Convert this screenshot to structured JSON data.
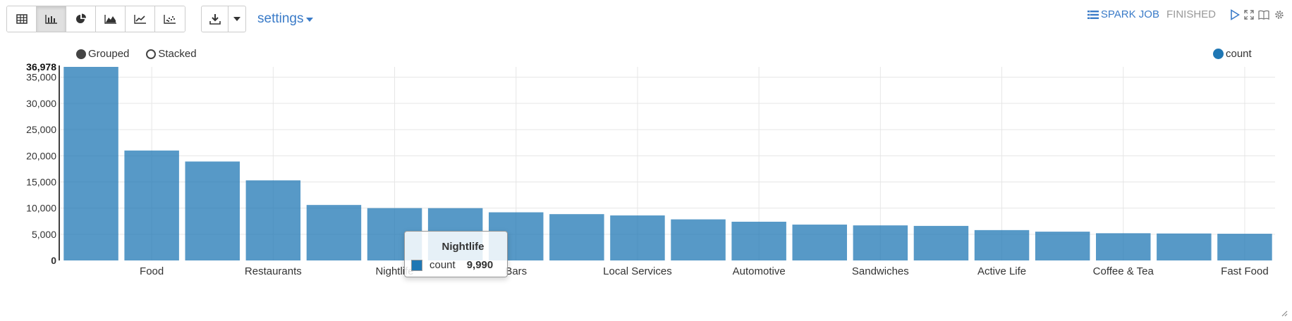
{
  "toolbar": {
    "view_buttons": [
      {
        "icon": "table-icon",
        "active": false
      },
      {
        "icon": "bar-chart-icon",
        "active": true
      },
      {
        "icon": "pie-chart-icon",
        "active": false
      },
      {
        "icon": "area-chart-icon",
        "active": false
      },
      {
        "icon": "line-chart-icon",
        "active": false
      },
      {
        "icon": "scatter-chart-icon",
        "active": false
      }
    ],
    "download_icon": "download-icon",
    "settings_label": "settings"
  },
  "status": {
    "spark_job_label": "SPARK JOB",
    "state": "FINISHED",
    "controls": [
      "run-icon",
      "expand-icon",
      "book-icon",
      "gear-icon"
    ]
  },
  "chart_options": {
    "grouped_label": "Grouped",
    "stacked_label": "Stacked",
    "selected": "Grouped"
  },
  "legend": {
    "series_label": "count",
    "color": "#1f77b4"
  },
  "tooltip": {
    "title": "Nightlife",
    "series": "count",
    "value": "9,990"
  },
  "chart_data": {
    "type": "bar",
    "categories": [
      "",
      "Food",
      "",
      "Restaurants",
      "",
      "Nightlife",
      "",
      "Bars",
      "",
      "Local Services",
      "",
      "Automotive",
      "",
      "Sandwiches",
      "",
      "Active Life",
      "",
      "Coffee & Tea",
      "",
      "Fast Food"
    ],
    "series": [
      {
        "name": "count",
        "values": [
          36978,
          21000,
          18900,
          15300,
          10600,
          10000,
          9990,
          9200,
          8850,
          8600,
          7850,
          7400,
          6850,
          6700,
          6600,
          5800,
          5500,
          5200,
          5150,
          5100
        ]
      }
    ],
    "y_ticks": [
      "0",
      "5,000",
      "10,000",
      "15,000",
      "20,000",
      "25,000",
      "30,000",
      "35,000"
    ],
    "y_max_label": "36,978",
    "ylim": [
      0,
      36978
    ],
    "grid": true,
    "legend_position": "top-right",
    "bar_color": "#1f77b4"
  }
}
